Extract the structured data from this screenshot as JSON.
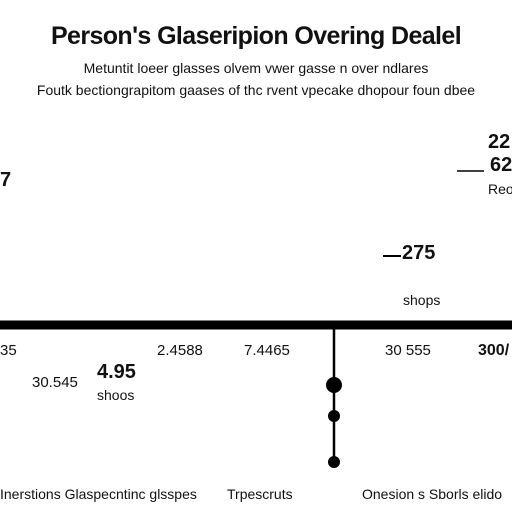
{
  "chart_data": {
    "type": "line",
    "title": "Person's Glaseripion Overing Dealel",
    "subtitle_1": "Metuntit loeer glasses olvem vwer gasse n over ndlares",
    "subtitle_2": "Foutk bectiongrapitom gaases of thc rvent vpecake dhopour foun dbee",
    "upper_annotations": {
      "left_value": "7",
      "right_top": "22",
      "right_mid": "62",
      "right_label": "Reo",
      "center_value": "275",
      "center_label": "shops"
    },
    "axis_tick_labels": [
      "35",
      "2.4588",
      "7.4465",
      "30 555",
      "300/"
    ],
    "lower_annotations": {
      "left_value": "30.545",
      "value_bold": "4.95",
      "value_label": "shoos"
    },
    "markers": [
      {
        "x": "30 555",
        "y": 1
      },
      {
        "x": "30 555",
        "y": 2
      },
      {
        "x": "30 555",
        "y": 3
      }
    ],
    "bottom_labels": [
      "Inerstions Glaspecntinc glsspes",
      "Trpescruts",
      "Onesion s Sborls elido"
    ],
    "grid": false
  }
}
